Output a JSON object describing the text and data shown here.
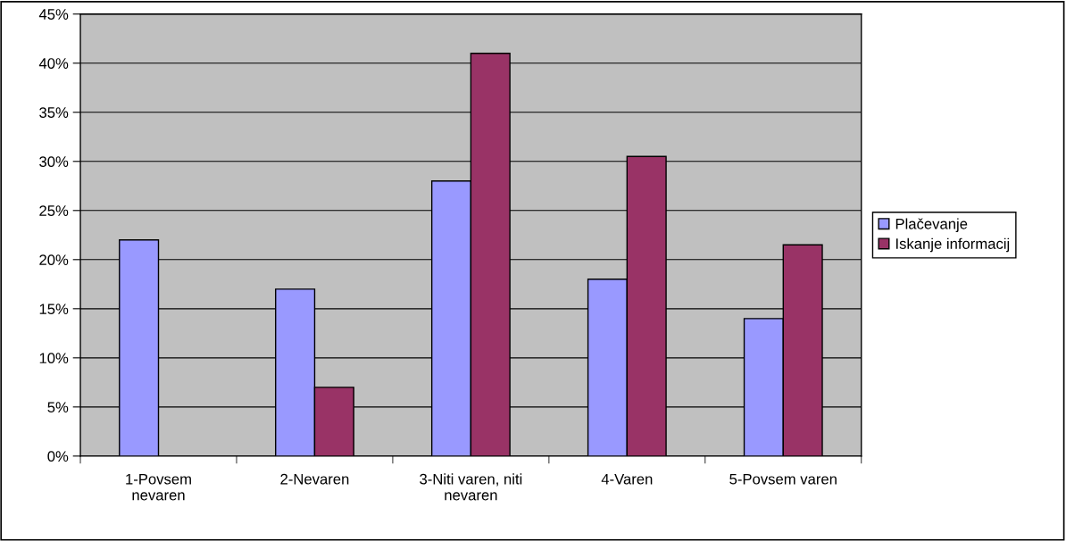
{
  "chart_data": {
    "type": "bar",
    "categories": [
      "1-Povsem\nnevaren",
      "2-Nevaren",
      "3-Niti varen, niti\nnevaren",
      "4-Varen",
      "5-Povsem varen"
    ],
    "series": [
      {
        "name": "Plačevanje",
        "color": "#9999ff",
        "values": [
          22,
          17,
          28,
          18,
          14
        ]
      },
      {
        "name": "Iskanje informacij",
        "color": "#993366",
        "values": [
          null,
          7,
          41,
          30.5,
          21.5
        ]
      }
    ],
    "ylim": [
      0,
      45
    ],
    "yticks": [
      {
        "value": 0,
        "label": "0%"
      },
      {
        "value": 5,
        "label": "5%"
      },
      {
        "value": 10,
        "label": "10%"
      },
      {
        "value": 15,
        "label": "15%"
      },
      {
        "value": 20,
        "label": "20%"
      },
      {
        "value": 25,
        "label": "25%"
      },
      {
        "value": 30,
        "label": "30%"
      },
      {
        "value": 35,
        "label": "35%"
      },
      {
        "value": 40,
        "label": "40%"
      },
      {
        "value": 45,
        "label": "45%"
      }
    ],
    "grid": "y",
    "legend": "right"
  }
}
